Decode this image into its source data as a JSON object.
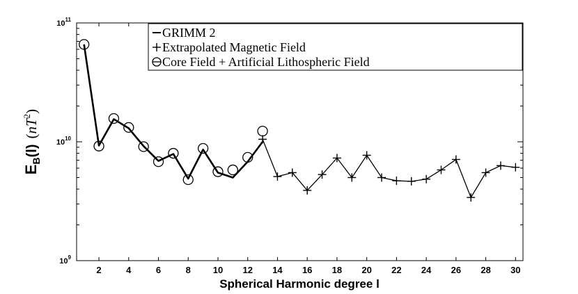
{
  "chart_data": {
    "type": "line",
    "title": "",
    "xlabel": "Spherical Harmonic degree l",
    "ylabel": {
      "main": "E",
      "sub": "B",
      "arg": "(l)",
      "unit_open": "(",
      "unit_var": "nT",
      "unit_exp": "2",
      "unit_close": ")"
    },
    "xlim": [
      0.5,
      30.5
    ],
    "ylim": [
      1000000000.0,
      100000000000.0
    ],
    "yscale": "log",
    "x_ticks": [
      2,
      4,
      6,
      8,
      10,
      12,
      14,
      16,
      18,
      20,
      22,
      24,
      26,
      28,
      30
    ],
    "y_ticks": [
      {
        "value": 1000000000.0,
        "base": "10",
        "exp": "9"
      },
      {
        "value": 10000000000.0,
        "base": "10",
        "exp": "10"
      },
      {
        "value": 100000000000.0,
        "base": "10",
        "exp": "11"
      }
    ],
    "grid": false,
    "legend_position": "top-center",
    "series": [
      {
        "name": "GRIMM 2",
        "marker": "line",
        "color": "#000000",
        "x": [
          1,
          2,
          3,
          4,
          5,
          6,
          7,
          8,
          9,
          10,
          11,
          12,
          13
        ],
        "y": [
          66000000000.0,
          9300000000.0,
          15500000000.0,
          13000000000.0,
          9200000000.0,
          6900000000.0,
          7900000000.0,
          4900000000.0,
          8600000000.0,
          5500000000.0,
          5000000000.0,
          6800000000.0,
          10000000000.0
        ]
      },
      {
        "name": "Extrapolated Magnetic Field",
        "marker": "plus",
        "color": "#000000",
        "x": [
          13,
          14,
          15,
          16,
          17,
          18,
          19,
          20,
          21,
          22,
          23,
          24,
          25,
          26,
          27,
          28,
          29,
          30
        ],
        "y": [
          10500000000.0,
          5100000000.0,
          5500000000.0,
          3900000000.0,
          5300000000.0,
          7300000000.0,
          5000000000.0,
          7700000000.0,
          5000000000.0,
          4700000000.0,
          4650000000.0,
          4850000000.0,
          5800000000.0,
          7100000000.0,
          3400000000.0,
          5500000000.0,
          6300000000.0,
          6100000000.0
        ]
      },
      {
        "name": "Core Field + Artificial Lithospheric Field",
        "marker": "circle",
        "color": "#000000",
        "x": [
          1,
          2,
          3,
          4,
          5,
          6,
          7,
          8,
          9,
          10,
          11,
          12,
          13
        ],
        "y": [
          66000000000.0,
          9200000000.0,
          15700000000.0,
          13200000000.0,
          9100000000.0,
          6800000000.0,
          8000000000.0,
          4800000000.0,
          8800000000.0,
          5600000000.0,
          5800000000.0,
          7400000000.0,
          12300000000.0
        ]
      }
    ]
  }
}
